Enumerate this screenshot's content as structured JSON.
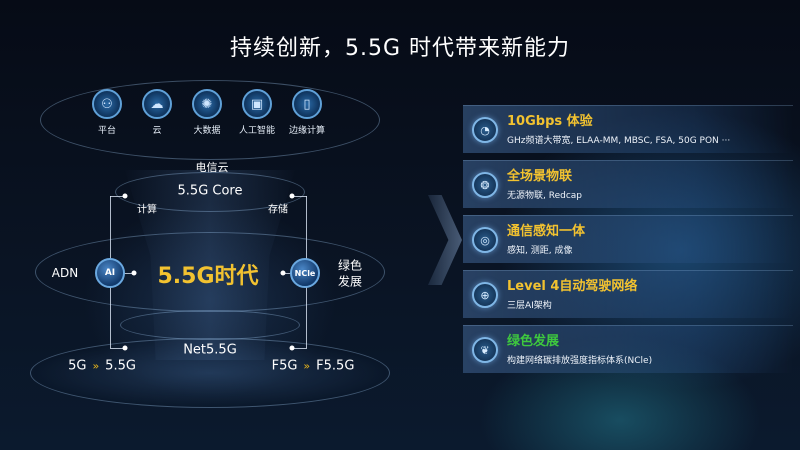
{
  "title": "持续创新，5.5G 时代带来新能力",
  "top_icons": [
    {
      "icon": "platform-icon",
      "label": "平台"
    },
    {
      "icon": "cloud-icon",
      "label": "云"
    },
    {
      "icon": "big-data-icon",
      "label": "大数据"
    },
    {
      "icon": "ai-chip-icon",
      "label": "人工智能"
    },
    {
      "icon": "edge-computing-icon",
      "label": "边缘计算"
    }
  ],
  "diagram": {
    "telecom_cloud": "电信云",
    "core": "5.5G Core",
    "compute": "计算",
    "storage": "存储",
    "adn": "ADN",
    "ai_node": "AI",
    "era": "5.5G时代",
    "ncle_node": "NCle",
    "green_line1": "绿色",
    "green_line2": "发展",
    "net": "Net5.5G",
    "left_from": "5G",
    "left_to": "5.5G",
    "right_from": "F5G",
    "right_to": "F5.5G"
  },
  "cards": [
    {
      "icon": "timer-icon",
      "title": "10Gbps 体验",
      "subtitle": "GHz频谱大带宽, ELAA-MM, MBSC, FSA, 50G PON ···"
    },
    {
      "icon": "iot-icon",
      "title": "全场景物联",
      "subtitle": "无源物联, Redcap"
    },
    {
      "icon": "sensing-icon",
      "title": "通信感知一体",
      "subtitle": "感知, 测距, 成像"
    },
    {
      "icon": "network-globe-icon",
      "title": "Level 4自动驾驶网络",
      "subtitle": "三层AI架构"
    },
    {
      "icon": "leaf-icon",
      "title": "绿色发展",
      "subtitle": "构建网络碳排放强度指标体系(NCle)"
    }
  ],
  "colors": {
    "accent_yellow": "#f2c230",
    "accent_green": "#3ec83e"
  }
}
